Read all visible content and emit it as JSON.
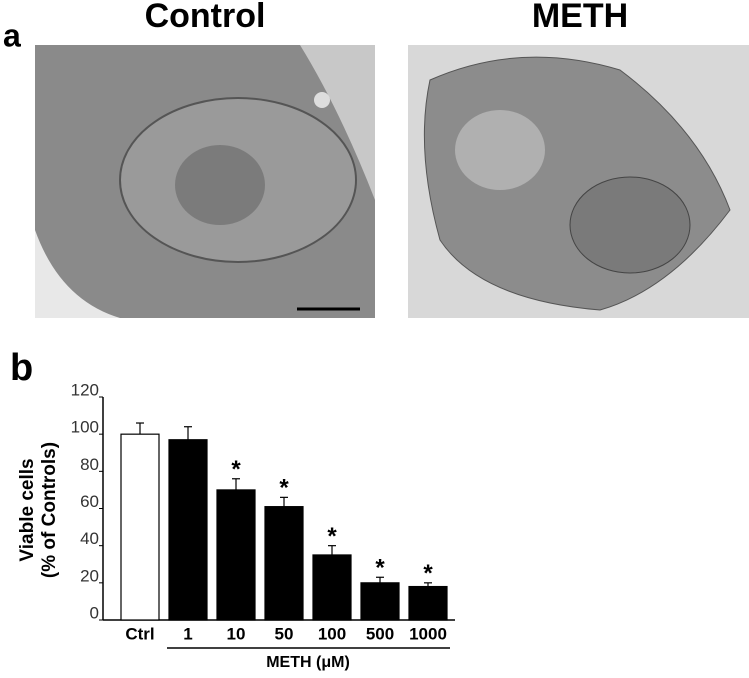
{
  "panel_a": {
    "label": "a",
    "images": [
      {
        "title": "Control"
      },
      {
        "title": "METH"
      }
    ]
  },
  "chart_data": {
    "type": "bar",
    "panel_label": "b",
    "ylabel": [
      "Viable cells",
      "(% of Controls)"
    ],
    "categories": [
      "Ctrl",
      "1",
      "10",
      "50",
      "100",
      "500",
      "1000"
    ],
    "values": [
      100,
      97,
      70,
      61,
      35,
      20,
      18
    ],
    "errors": [
      6,
      7,
      6,
      5,
      5,
      3,
      2
    ],
    "colors": [
      "#ffffff",
      "#000000",
      "#000000",
      "#000000",
      "#000000",
      "#000000",
      "#000000"
    ],
    "annotations": [
      null,
      null,
      "*",
      "*",
      "*",
      "*",
      "*"
    ],
    "group_label": "METH (μM)",
    "ylim": [
      0,
      120
    ],
    "yticks": [
      0,
      20,
      40,
      60,
      80,
      100,
      120
    ]
  }
}
